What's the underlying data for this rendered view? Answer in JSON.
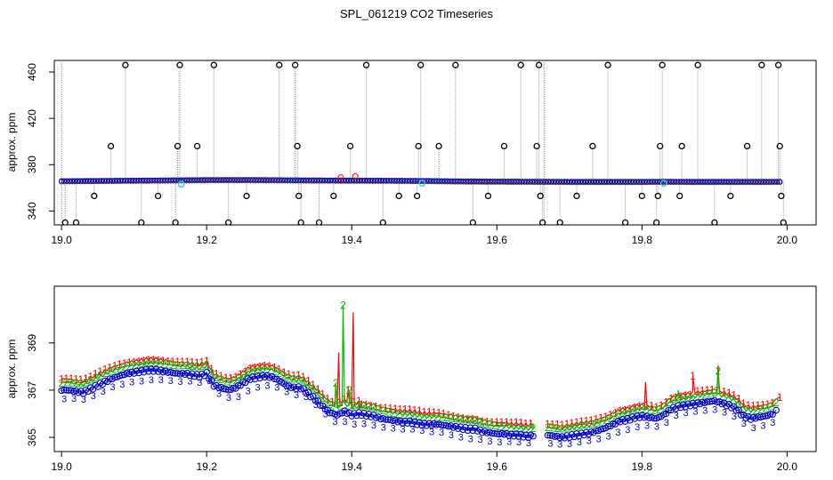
{
  "figure": {
    "title": "SPL_061219  CO2 Timeseries"
  },
  "chart_data": [
    {
      "type": "scatter",
      "title": "",
      "xlabel": "",
      "ylabel": "approx. ppm",
      "xlim": [
        18.99,
        20.04
      ],
      "ylim": [
        328,
        470
      ],
      "xticks": [
        "19.0",
        "19.2",
        "19.4",
        "19.6",
        "19.8",
        "20.0"
      ],
      "xtick_values": [
        19.0,
        19.2,
        19.4,
        19.6,
        19.8,
        20.0
      ],
      "yticks": [
        "340",
        "380",
        "420",
        "460"
      ],
      "ytick_values": [
        340,
        380,
        420,
        460
      ],
      "grid": false,
      "colors": {
        "series1": "#ff0000",
        "series2": "#00bb00",
        "series3": "#0000cc",
        "spikes": "#000000",
        "cyan": "#33ccdd",
        "connector": "#999999"
      },
      "baseline": [
        365.6,
        365.8,
        366.0,
        366.2,
        366.4,
        366.6,
        366.6,
        366.5,
        366.3,
        366.2,
        366.1,
        366.0,
        365.8,
        365.5,
        365.3,
        365.2,
        365.1,
        365.0,
        365.0,
        365.0,
        365.1,
        365.0,
        365.0,
        365.0,
        365.1
      ],
      "spikes": [
        {
          "x": 19.005,
          "y": 330
        },
        {
          "x": 19.02,
          "y": 330
        },
        {
          "x": 19.045,
          "y": 353
        },
        {
          "x": 19.068,
          "y": 396
        },
        {
          "x": 19.088,
          "y": 466
        },
        {
          "x": 19.11,
          "y": 330
        },
        {
          "x": 19.133,
          "y": 353
        },
        {
          "x": 19.157,
          "y": 330
        },
        {
          "x": 19.16,
          "y": 396
        },
        {
          "x": 19.163,
          "y": 466
        },
        {
          "x": 19.187,
          "y": 396
        },
        {
          "x": 19.21,
          "y": 466
        },
        {
          "x": 19.23,
          "y": 330
        },
        {
          "x": 19.255,
          "y": 353
        },
        {
          "x": 19.3,
          "y": 466
        },
        {
          "x": 19.322,
          "y": 466
        },
        {
          "x": 19.325,
          "y": 396
        },
        {
          "x": 19.327,
          "y": 353
        },
        {
          "x": 19.33,
          "y": 330
        },
        {
          "x": 19.355,
          "y": 330
        },
        {
          "x": 19.375,
          "y": 353
        },
        {
          "x": 19.398,
          "y": 396
        },
        {
          "x": 19.42,
          "y": 466
        },
        {
          "x": 19.443,
          "y": 330
        },
        {
          "x": 19.465,
          "y": 353
        },
        {
          "x": 19.49,
          "y": 353
        },
        {
          "x": 19.492,
          "y": 396
        },
        {
          "x": 19.495,
          "y": 466
        },
        {
          "x": 19.52,
          "y": 396
        },
        {
          "x": 19.543,
          "y": 466
        },
        {
          "x": 19.567,
          "y": 330
        },
        {
          "x": 19.588,
          "y": 353
        },
        {
          "x": 19.61,
          "y": 396
        },
        {
          "x": 19.633,
          "y": 466
        },
        {
          "x": 19.655,
          "y": 396
        },
        {
          "x": 19.658,
          "y": 466
        },
        {
          "x": 19.66,
          "y": 353
        },
        {
          "x": 19.663,
          "y": 330
        },
        {
          "x": 19.687,
          "y": 330
        },
        {
          "x": 19.71,
          "y": 353
        },
        {
          "x": 19.732,
          "y": 396
        },
        {
          "x": 19.753,
          "y": 466
        },
        {
          "x": 19.777,
          "y": 330
        },
        {
          "x": 19.8,
          "y": 353
        },
        {
          "x": 19.82,
          "y": 330
        },
        {
          "x": 19.822,
          "y": 353
        },
        {
          "x": 19.825,
          "y": 396
        },
        {
          "x": 19.828,
          "y": 466
        },
        {
          "x": 19.852,
          "y": 353
        },
        {
          "x": 19.855,
          "y": 396
        },
        {
          "x": 19.877,
          "y": 466
        },
        {
          "x": 19.9,
          "y": 330
        },
        {
          "x": 19.922,
          "y": 353
        },
        {
          "x": 19.945,
          "y": 396
        },
        {
          "x": 19.965,
          "y": 466
        },
        {
          "x": 19.988,
          "y": 466
        },
        {
          "x": 19.99,
          "y": 396
        },
        {
          "x": 19.992,
          "y": 353
        },
        {
          "x": 19.995,
          "y": 330
        }
      ],
      "cyan_points": [
        {
          "x": 19.165,
          "y": 363
        },
        {
          "x": 19.497,
          "y": 364
        },
        {
          "x": 19.83,
          "y": 364
        }
      ],
      "red_bump": [
        {
          "x": 19.385,
          "y": 369
        },
        {
          "x": 19.405,
          "y": 370
        }
      ]
    },
    {
      "type": "line",
      "title": "",
      "xlabel": "",
      "ylabel": "approx. ppm",
      "xlim": [
        18.99,
        20.04
      ],
      "ylim": [
        364.4,
        371.4
      ],
      "xticks": [
        "19.0",
        "19.2",
        "19.4",
        "19.6",
        "19.8",
        "20.0"
      ],
      "xtick_values": [
        19.0,
        19.2,
        19.4,
        19.6,
        19.8,
        20.0
      ],
      "yticks": [
        "365",
        "367",
        "369"
      ],
      "ytick_values": [
        365,
        367,
        369
      ],
      "grid": false,
      "series_markers": [
        "1",
        "2",
        "3"
      ],
      "colors": {
        "series1": "#ff0000",
        "series2": "#00bb00",
        "series3": "#0000cc"
      },
      "series3_points": [
        [
          19.0,
          367.0
        ],
        [
          19.01,
          367.0
        ],
        [
          19.02,
          366.95
        ],
        [
          19.03,
          366.9
        ],
        [
          19.04,
          367.05
        ],
        [
          19.05,
          367.2
        ],
        [
          19.06,
          367.35
        ],
        [
          19.07,
          367.5
        ],
        [
          19.08,
          367.6
        ],
        [
          19.09,
          367.7
        ],
        [
          19.1,
          367.75
        ],
        [
          19.11,
          367.8
        ],
        [
          19.12,
          367.85
        ],
        [
          19.13,
          367.85
        ],
        [
          19.14,
          367.8
        ],
        [
          19.15,
          367.75
        ],
        [
          19.16,
          367.7
        ],
        [
          19.17,
          367.7
        ],
        [
          19.18,
          367.65
        ],
        [
          19.19,
          367.6
        ],
        [
          19.2,
          367.7
        ],
        [
          19.21,
          367.2
        ],
        [
          19.22,
          367.1
        ],
        [
          19.23,
          367.0
        ],
        [
          19.24,
          367.1
        ],
        [
          19.25,
          367.3
        ],
        [
          19.26,
          367.5
        ],
        [
          19.27,
          367.55
        ],
        [
          19.28,
          367.6
        ],
        [
          19.29,
          367.55
        ],
        [
          19.3,
          367.4
        ],
        [
          19.31,
          367.2
        ],
        [
          19.32,
          367.1
        ],
        [
          19.33,
          367.1
        ],
        [
          19.34,
          366.85
        ],
        [
          19.35,
          366.6
        ],
        [
          19.36,
          366.3
        ],
        [
          19.37,
          366.05
        ],
        [
          19.38,
          365.95
        ],
        [
          19.39,
          366.1
        ],
        [
          19.4,
          365.95
        ],
        [
          19.41,
          366.0
        ],
        [
          19.42,
          365.95
        ],
        [
          19.43,
          365.9
        ],
        [
          19.44,
          365.8
        ],
        [
          19.45,
          365.75
        ],
        [
          19.46,
          365.7
        ],
        [
          19.47,
          365.65
        ],
        [
          19.48,
          365.65
        ],
        [
          19.49,
          365.6
        ],
        [
          19.5,
          365.55
        ],
        [
          19.51,
          365.55
        ],
        [
          19.52,
          365.55
        ],
        [
          19.53,
          365.5
        ],
        [
          19.54,
          365.45
        ],
        [
          19.55,
          365.4
        ],
        [
          19.56,
          365.35
        ],
        [
          19.57,
          365.35
        ],
        [
          19.58,
          365.25
        ],
        [
          19.59,
          365.2
        ],
        [
          19.6,
          365.15
        ],
        [
          19.61,
          365.15
        ],
        [
          19.62,
          365.1
        ],
        [
          19.63,
          365.1
        ],
        [
          19.64,
          365.05
        ],
        [
          19.65,
          365.05
        ],
        [
          19.67,
          365.1
        ],
        [
          19.68,
          365.05
        ],
        [
          19.69,
          365.0
        ],
        [
          19.7,
          365.05
        ],
        [
          19.71,
          365.1
        ],
        [
          19.72,
          365.15
        ],
        [
          19.73,
          365.2
        ],
        [
          19.74,
          365.3
        ],
        [
          19.75,
          365.4
        ],
        [
          19.76,
          365.55
        ],
        [
          19.77,
          365.7
        ],
        [
          19.78,
          365.75
        ],
        [
          19.79,
          365.85
        ],
        [
          19.8,
          365.9
        ],
        [
          19.81,
          365.85
        ],
        [
          19.82,
          365.8
        ],
        [
          19.83,
          365.95
        ],
        [
          19.84,
          366.2
        ],
        [
          19.85,
          366.3
        ],
        [
          19.86,
          366.35
        ],
        [
          19.87,
          366.4
        ],
        [
          19.88,
          366.45
        ],
        [
          19.89,
          366.5
        ],
        [
          19.9,
          366.55
        ],
        [
          19.91,
          366.45
        ],
        [
          19.92,
          366.35
        ],
        [
          19.93,
          366.2
        ],
        [
          19.94,
          365.9
        ],
        [
          19.95,
          365.8
        ],
        [
          19.96,
          365.85
        ],
        [
          19.97,
          365.9
        ],
        [
          19.98,
          366.0
        ],
        [
          19.985,
          366.15
        ]
      ],
      "series2_offset": 0.32,
      "series1_offset": 0.48,
      "series1_spikes": [
        [
          19.382,
          368.6
        ],
        [
          19.395,
          367.0
        ],
        [
          19.402,
          370.3
        ],
        [
          19.41,
          366.2
        ],
        [
          19.805,
          367.35
        ],
        [
          19.87,
          367.6
        ],
        [
          19.905,
          368.05
        ],
        [
          19.99,
          366.7
        ]
      ],
      "series2_spikes": [
        [
          19.378,
          367.3
        ],
        [
          19.388,
          370.6
        ],
        [
          19.397,
          367.0
        ],
        [
          19.65,
          365.6
        ],
        [
          19.85,
          367.0
        ],
        [
          19.905,
          367.8
        ]
      ]
    }
  ]
}
